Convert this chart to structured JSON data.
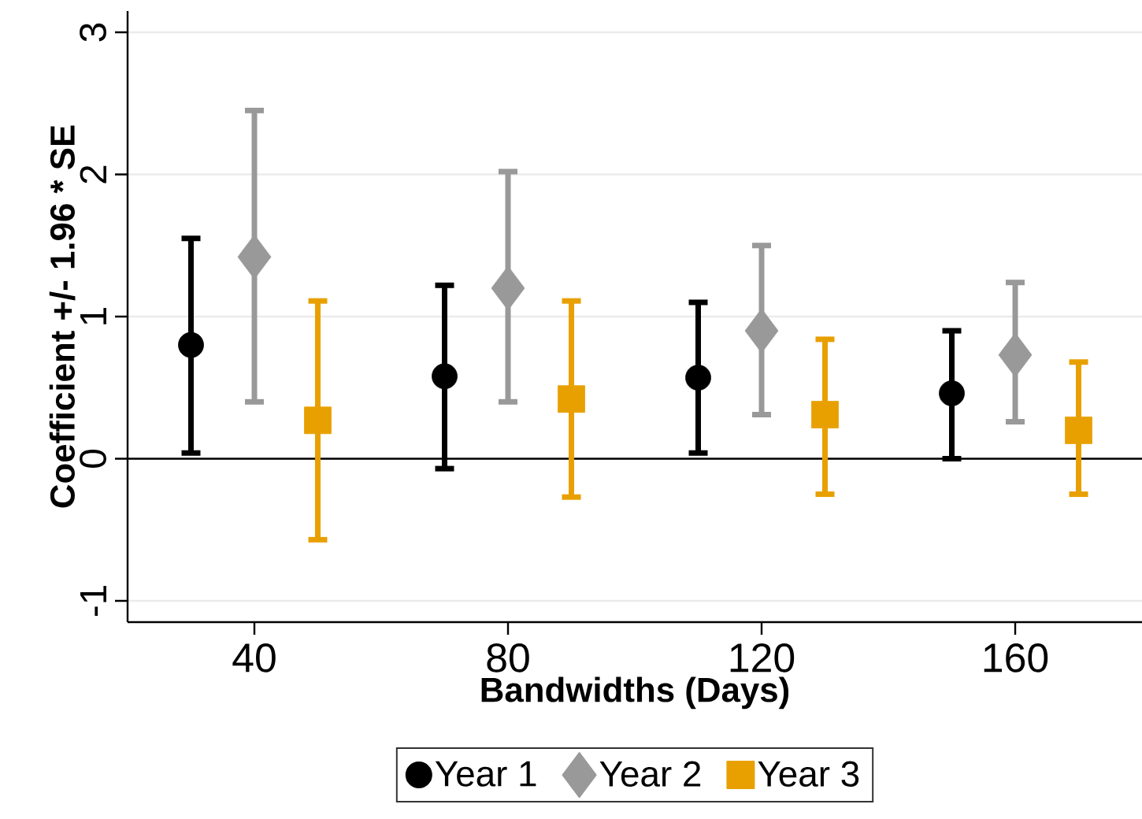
{
  "chart_data": {
    "type": "scatter",
    "xlabel": "Bandwidths (Days)",
    "ylabel": "Coefficient +/- 1.96 * SE",
    "xlim": [
      20,
      180
    ],
    "ylim": [
      -1.15,
      3.15
    ],
    "xticks": [
      40,
      80,
      120,
      160
    ],
    "yticks": [
      -1,
      0,
      1,
      2,
      3
    ],
    "grid": "y",
    "legend": "bottom",
    "ref_lines": [
      {
        "axis": "y",
        "value": 0,
        "color": "#000000"
      }
    ],
    "series": [
      {
        "name": "Year 1",
        "color": "#000000",
        "marker": "circle",
        "x": [
          30,
          70,
          110,
          150
        ],
        "values": [
          0.8,
          0.58,
          0.57,
          0.46
        ],
        "errors": [
          [
            0.04,
            1.55
          ],
          [
            -0.07,
            1.22
          ],
          [
            0.04,
            1.1
          ],
          [
            0.0,
            0.9
          ]
        ]
      },
      {
        "name": "Year 2",
        "color": "#999999",
        "marker": "diamond",
        "x": [
          40,
          80,
          120,
          160
        ],
        "values": [
          1.42,
          1.2,
          0.9,
          0.73
        ],
        "errors": [
          [
            0.4,
            2.45
          ],
          [
            0.4,
            2.02
          ],
          [
            0.31,
            1.5
          ],
          [
            0.26,
            1.24
          ]
        ]
      },
      {
        "name": "Year 3",
        "color": "#e8a000",
        "marker": "square",
        "x": [
          50,
          90,
          130,
          170
        ],
        "values": [
          0.27,
          0.42,
          0.31,
          0.2
        ],
        "errors": [
          [
            -0.57,
            1.11
          ],
          [
            -0.27,
            1.11
          ],
          [
            -0.25,
            0.84
          ],
          [
            -0.25,
            0.68
          ]
        ]
      }
    ]
  }
}
